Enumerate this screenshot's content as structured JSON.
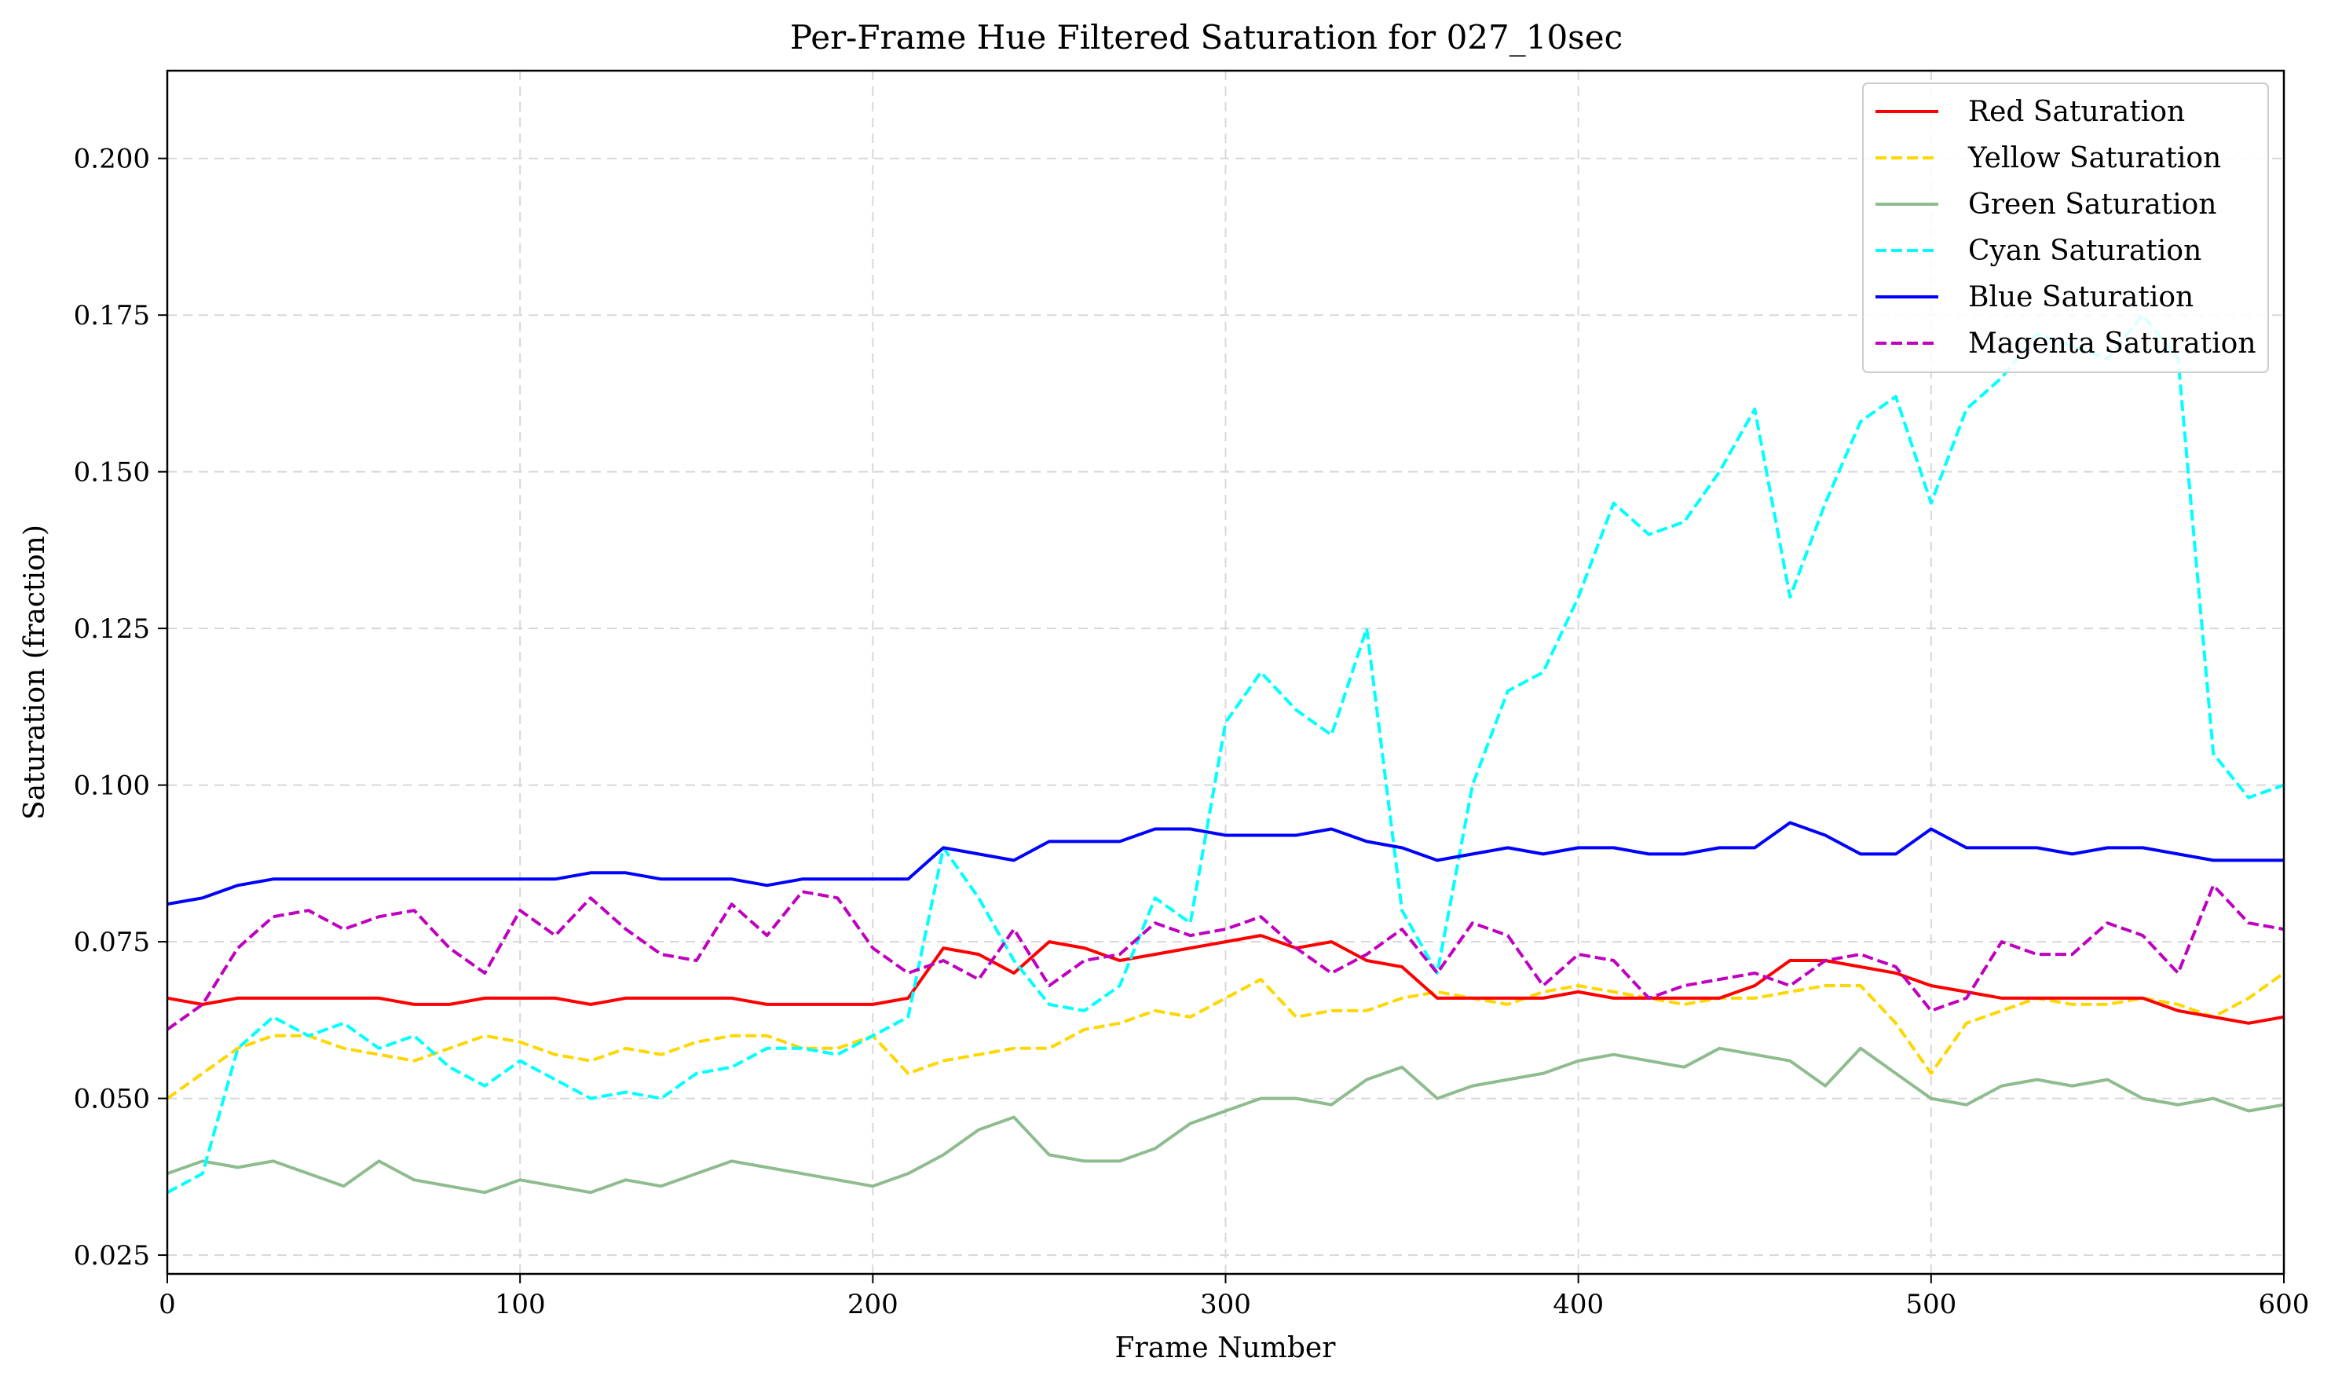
{
  "chart_data": {
    "type": "line",
    "title": "Per-Frame Hue Filtered Saturation for 027_10sec",
    "xlabel": "Frame Number",
    "ylabel": "Saturation (fraction)",
    "xlim": [
      0,
      600
    ],
    "ylim": [
      0.022,
      0.214
    ],
    "xticks": [
      0,
      100,
      200,
      300,
      400,
      500,
      600
    ],
    "yticks": [
      0.025,
      0.05,
      0.075,
      0.1,
      0.125,
      0.15,
      0.175,
      0.2
    ],
    "ytick_labels": [
      "0.025",
      "0.050",
      "0.075",
      "0.100",
      "0.125",
      "0.150",
      "0.175",
      "0.200"
    ],
    "grid": true,
    "legend_position": "top-right",
    "series": [
      {
        "name": "Red Saturation",
        "color": "#ff0000",
        "dash": "solid",
        "x": [
          0,
          10,
          20,
          30,
          40,
          50,
          60,
          70,
          80,
          90,
          100,
          110,
          120,
          130,
          140,
          150,
          160,
          170,
          180,
          190,
          200,
          210,
          220,
          230,
          240,
          250,
          260,
          270,
          280,
          290,
          300,
          310,
          320,
          330,
          340,
          350,
          360,
          370,
          380,
          390,
          400,
          410,
          420,
          430,
          440,
          450,
          460,
          470,
          480,
          490,
          500,
          510,
          520,
          530,
          540,
          550,
          560,
          570,
          580,
          590,
          600
        ],
        "values": [
          0.066,
          0.065,
          0.066,
          0.066,
          0.066,
          0.066,
          0.066,
          0.065,
          0.065,
          0.066,
          0.066,
          0.066,
          0.065,
          0.066,
          0.066,
          0.066,
          0.066,
          0.065,
          0.065,
          0.065,
          0.065,
          0.066,
          0.074,
          0.073,
          0.07,
          0.075,
          0.074,
          0.072,
          0.073,
          0.074,
          0.075,
          0.076,
          0.074,
          0.075,
          0.072,
          0.071,
          0.066,
          0.066,
          0.066,
          0.066,
          0.067,
          0.066,
          0.066,
          0.066,
          0.066,
          0.068,
          0.072,
          0.072,
          0.071,
          0.07,
          0.068,
          0.067,
          0.066,
          0.066,
          0.066,
          0.066,
          0.066,
          0.064,
          0.063,
          0.062,
          0.063
        ]
      },
      {
        "name": "Yellow Saturation",
        "color": "#ffd700",
        "dash": "dashed",
        "x": [
          0,
          10,
          20,
          30,
          40,
          50,
          60,
          70,
          80,
          90,
          100,
          110,
          120,
          130,
          140,
          150,
          160,
          170,
          180,
          190,
          200,
          210,
          220,
          230,
          240,
          250,
          260,
          270,
          280,
          290,
          300,
          310,
          320,
          330,
          340,
          350,
          360,
          370,
          380,
          390,
          400,
          410,
          420,
          430,
          440,
          450,
          460,
          470,
          480,
          490,
          500,
          510,
          520,
          530,
          540,
          550,
          560,
          570,
          580,
          590,
          600
        ],
        "values": [
          0.05,
          0.054,
          0.058,
          0.06,
          0.06,
          0.058,
          0.057,
          0.056,
          0.058,
          0.06,
          0.059,
          0.057,
          0.056,
          0.058,
          0.057,
          0.059,
          0.06,
          0.06,
          0.058,
          0.058,
          0.06,
          0.054,
          0.056,
          0.057,
          0.058,
          0.058,
          0.061,
          0.062,
          0.064,
          0.063,
          0.066,
          0.069,
          0.063,
          0.064,
          0.064,
          0.066,
          0.067,
          0.066,
          0.065,
          0.067,
          0.068,
          0.067,
          0.066,
          0.065,
          0.066,
          0.066,
          0.067,
          0.068,
          0.068,
          0.062,
          0.054,
          0.062,
          0.064,
          0.066,
          0.065,
          0.065,
          0.066,
          0.065,
          0.063,
          0.066,
          0.07
        ]
      },
      {
        "name": "Green Saturation",
        "color": "#8fbc8f",
        "dash": "solid",
        "x": [
          0,
          10,
          20,
          30,
          40,
          50,
          60,
          70,
          80,
          90,
          100,
          110,
          120,
          130,
          140,
          150,
          160,
          170,
          180,
          190,
          200,
          210,
          220,
          230,
          240,
          250,
          260,
          270,
          280,
          290,
          300,
          310,
          320,
          330,
          340,
          350,
          360,
          370,
          380,
          390,
          400,
          410,
          420,
          430,
          440,
          450,
          460,
          470,
          480,
          490,
          500,
          510,
          520,
          530,
          540,
          550,
          560,
          570,
          580,
          590,
          600
        ],
        "values": [
          0.038,
          0.04,
          0.039,
          0.04,
          0.038,
          0.036,
          0.04,
          0.037,
          0.036,
          0.035,
          0.037,
          0.036,
          0.035,
          0.037,
          0.036,
          0.038,
          0.04,
          0.039,
          0.038,
          0.037,
          0.036,
          0.038,
          0.041,
          0.045,
          0.047,
          0.041,
          0.04,
          0.04,
          0.042,
          0.046,
          0.048,
          0.05,
          0.05,
          0.049,
          0.053,
          0.055,
          0.05,
          0.052,
          0.053,
          0.054,
          0.056,
          0.057,
          0.056,
          0.055,
          0.058,
          0.057,
          0.056,
          0.052,
          0.058,
          0.054,
          0.05,
          0.049,
          0.052,
          0.053,
          0.052,
          0.053,
          0.05,
          0.049,
          0.05,
          0.048,
          0.049
        ]
      },
      {
        "name": "Cyan Saturation",
        "color": "#00ffff",
        "dash": "dashed",
        "x": [
          0,
          10,
          20,
          30,
          40,
          50,
          60,
          70,
          80,
          90,
          100,
          110,
          120,
          130,
          140,
          150,
          160,
          170,
          180,
          190,
          200,
          210,
          220,
          230,
          240,
          250,
          260,
          270,
          280,
          290,
          300,
          310,
          320,
          330,
          340,
          350,
          360,
          370,
          380,
          390,
          400,
          410,
          420,
          430,
          440,
          450,
          460,
          470,
          480,
          490,
          500,
          510,
          520,
          530,
          540,
          550,
          560,
          570,
          580,
          590,
          600
        ],
        "values": [
          0.035,
          0.038,
          0.058,
          0.063,
          0.06,
          0.062,
          0.058,
          0.06,
          0.055,
          0.052,
          0.056,
          0.053,
          0.05,
          0.051,
          0.05,
          0.054,
          0.055,
          0.058,
          0.058,
          0.057,
          0.06,
          0.063,
          0.09,
          0.082,
          0.072,
          0.065,
          0.064,
          0.068,
          0.082,
          0.078,
          0.11,
          0.118,
          0.112,
          0.108,
          0.125,
          0.08,
          0.07,
          0.1,
          0.115,
          0.118,
          0.13,
          0.145,
          0.14,
          0.142,
          0.15,
          0.16,
          0.13,
          0.145,
          0.158,
          0.162,
          0.145,
          0.16,
          0.165,
          0.172,
          0.17,
          0.168,
          0.175,
          0.168,
          0.105,
          0.098,
          0.1
        ]
      },
      {
        "name": "Blue Saturation",
        "color": "#0000ff",
        "dash": "solid",
        "x": [
          0,
          10,
          20,
          30,
          40,
          50,
          60,
          70,
          80,
          90,
          100,
          110,
          120,
          130,
          140,
          150,
          160,
          170,
          180,
          190,
          200,
          210,
          220,
          230,
          240,
          250,
          260,
          270,
          280,
          290,
          300,
          310,
          320,
          330,
          340,
          350,
          360,
          370,
          380,
          390,
          400,
          410,
          420,
          430,
          440,
          450,
          460,
          470,
          480,
          490,
          500,
          510,
          520,
          530,
          540,
          550,
          560,
          570,
          580,
          590,
          600
        ],
        "values": [
          0.081,
          0.082,
          0.084,
          0.085,
          0.085,
          0.085,
          0.085,
          0.085,
          0.085,
          0.085,
          0.085,
          0.085,
          0.086,
          0.086,
          0.085,
          0.085,
          0.085,
          0.084,
          0.085,
          0.085,
          0.085,
          0.085,
          0.09,
          0.089,
          0.088,
          0.091,
          0.091,
          0.091,
          0.093,
          0.093,
          0.092,
          0.092,
          0.092,
          0.093,
          0.091,
          0.09,
          0.088,
          0.089,
          0.09,
          0.089,
          0.09,
          0.09,
          0.089,
          0.089,
          0.09,
          0.09,
          0.094,
          0.092,
          0.089,
          0.089,
          0.093,
          0.09,
          0.09,
          0.09,
          0.089,
          0.09,
          0.09,
          0.089,
          0.088,
          0.088,
          0.088
        ]
      },
      {
        "name": "Magenta Saturation",
        "color": "#bf00bf",
        "dash": "dashed",
        "x": [
          0,
          10,
          20,
          30,
          40,
          50,
          60,
          70,
          80,
          90,
          100,
          110,
          120,
          130,
          140,
          150,
          160,
          170,
          180,
          190,
          200,
          210,
          220,
          230,
          240,
          250,
          260,
          270,
          280,
          290,
          300,
          310,
          320,
          330,
          340,
          350,
          360,
          370,
          380,
          390,
          400,
          410,
          420,
          430,
          440,
          450,
          460,
          470,
          480,
          490,
          500,
          510,
          520,
          530,
          540,
          550,
          560,
          570,
          580,
          590,
          600
        ],
        "values": [
          0.061,
          0.065,
          0.074,
          0.079,
          0.08,
          0.077,
          0.079,
          0.08,
          0.074,
          0.07,
          0.08,
          0.076,
          0.082,
          0.077,
          0.073,
          0.072,
          0.081,
          0.076,
          0.083,
          0.082,
          0.074,
          0.07,
          0.072,
          0.069,
          0.077,
          0.068,
          0.072,
          0.073,
          0.078,
          0.076,
          0.077,
          0.079,
          0.074,
          0.07,
          0.073,
          0.077,
          0.07,
          0.078,
          0.076,
          0.068,
          0.073,
          0.072,
          0.066,
          0.068,
          0.069,
          0.07,
          0.068,
          0.072,
          0.073,
          0.071,
          0.064,
          0.066,
          0.075,
          0.073,
          0.073,
          0.078,
          0.076,
          0.07,
          0.084,
          0.078,
          0.077
        ]
      }
    ]
  }
}
